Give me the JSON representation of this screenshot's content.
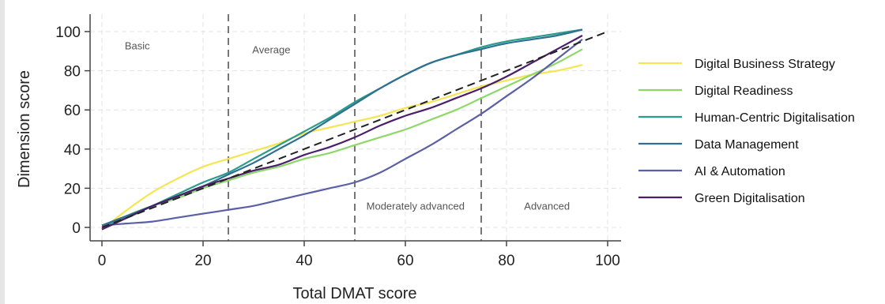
{
  "chart_data": {
    "type": "line",
    "title": "",
    "xlabel": "Total DMAT score",
    "ylabel": "Dimension score",
    "xlim": [
      0,
      100
    ],
    "ylim": [
      -5,
      105
    ],
    "xticks": [
      0,
      20,
      40,
      60,
      80,
      100
    ],
    "yticks": [
      0,
      20,
      40,
      60,
      80,
      100
    ],
    "grid": true,
    "legend_position": "right",
    "thresholds": [
      25,
      50,
      75
    ],
    "regions": [
      {
        "label": "Basic",
        "x": 7,
        "y": 91
      },
      {
        "label": "Average",
        "x": 33.5,
        "y": 89
      },
      {
        "label": "Moderately advanced",
        "x": 62,
        "y": 9
      },
      {
        "label": "Advanced",
        "x": 88,
        "y": 9
      }
    ],
    "reference_line": {
      "x": [
        0,
        100
      ],
      "y": [
        0,
        100
      ],
      "color": "#222222"
    },
    "series": [
      {
        "name": "Digital Business Strategy",
        "color": "#f5e552",
        "x": [
          0,
          5,
          10,
          15,
          20,
          25,
          30,
          35,
          40,
          45,
          50,
          55,
          60,
          65,
          70,
          75,
          80,
          85,
          90,
          95
        ],
        "y": [
          -1,
          9,
          18,
          25,
          31,
          35,
          39,
          43,
          48,
          51,
          54,
          57,
          61,
          64,
          68,
          72,
          75,
          78,
          80,
          83
        ]
      },
      {
        "name": "Digital Readiness",
        "color": "#8ed86a",
        "x": [
          0,
          5,
          10,
          15,
          20,
          25,
          30,
          35,
          40,
          45,
          50,
          55,
          60,
          65,
          70,
          75,
          80,
          85,
          90,
          95
        ],
        "y": [
          0,
          6,
          11,
          15,
          20,
          24,
          28,
          31,
          35,
          38,
          42,
          46,
          50,
          55,
          60,
          66,
          72,
          78,
          84,
          91
        ]
      },
      {
        "name": "Human-Centric Digitalisation",
        "color": "#2a9d8a",
        "x": [
          0,
          5,
          10,
          15,
          20,
          25,
          30,
          35,
          40,
          45,
          50,
          55,
          60,
          65,
          70,
          75,
          80,
          85,
          90,
          95
        ],
        "y": [
          1,
          5,
          11,
          17,
          23,
          28,
          35,
          42,
          49,
          56,
          64,
          71,
          78,
          84,
          88,
          92,
          95,
          97,
          99,
          101
        ]
      },
      {
        "name": "Data Management",
        "color": "#2f6f8f",
        "x": [
          0,
          5,
          10,
          15,
          20,
          25,
          30,
          35,
          40,
          45,
          50,
          55,
          60,
          65,
          70,
          75,
          80,
          85,
          90,
          95
        ],
        "y": [
          1,
          6,
          11,
          16,
          21,
          27,
          33,
          40,
          47,
          55,
          63,
          71,
          78,
          84,
          88,
          91,
          94,
          96,
          98,
          101
        ]
      },
      {
        "name": "AI & Automation",
        "color": "#5a5fa6",
        "x": [
          0,
          5,
          10,
          15,
          20,
          25,
          30,
          35,
          40,
          45,
          50,
          55,
          60,
          65,
          70,
          75,
          80,
          85,
          90,
          95
        ],
        "y": [
          1,
          2,
          3,
          5,
          7,
          9,
          11,
          14,
          17,
          20,
          23,
          28,
          35,
          42,
          50,
          58,
          67,
          76,
          86,
          96
        ]
      },
      {
        "name": "Green Digitalisation",
        "color": "#4b1e6a",
        "x": [
          0,
          5,
          10,
          15,
          20,
          25,
          30,
          35,
          40,
          45,
          50,
          55,
          60,
          65,
          70,
          75,
          80,
          85,
          90,
          95
        ],
        "y": [
          -1,
          5,
          11,
          16,
          21,
          25,
          29,
          32,
          37,
          41,
          46,
          52,
          57,
          61,
          66,
          71,
          77,
          84,
          91,
          98
        ]
      }
    ]
  }
}
